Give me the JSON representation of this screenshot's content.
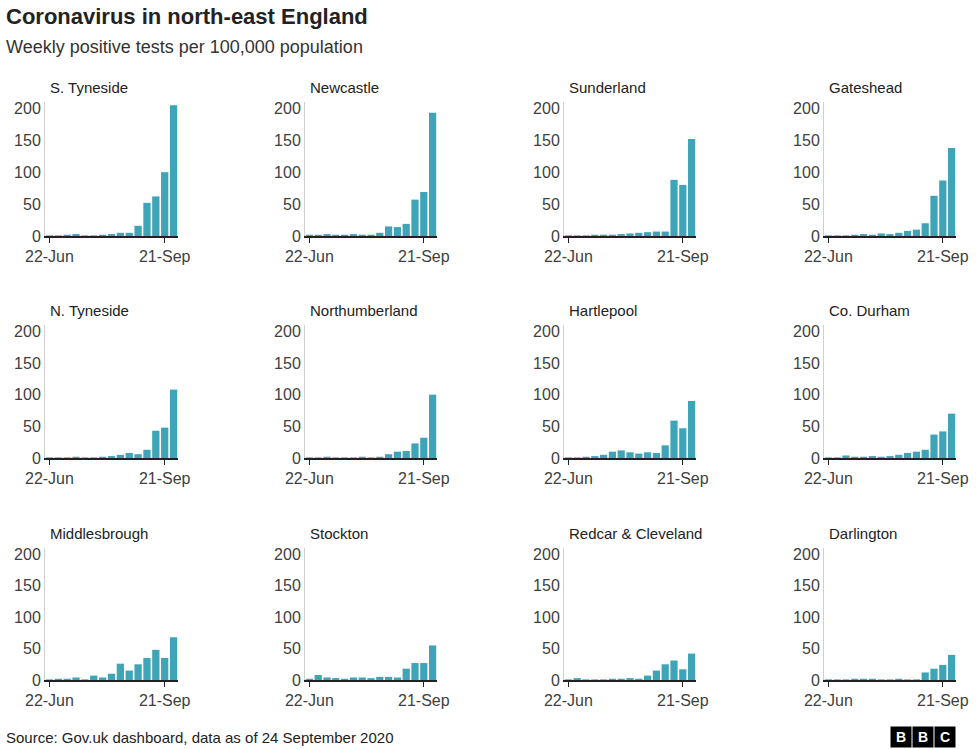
{
  "title": "Coronavirus in north-east England",
  "subtitle": "Weekly positive tests per 100,000 population",
  "source": "Source: Gov.uk dashboard, data as of 24 September 2020",
  "logo": "BBC",
  "chart_data": [
    {
      "type": "bar",
      "title": "S. Tyneside",
      "categories": [
        "22-Jun",
        null,
        null,
        null,
        null,
        null,
        null,
        null,
        null,
        null,
        null,
        null,
        null,
        "21-Sep",
        null
      ],
      "values": [
        1,
        1,
        2,
        3,
        1,
        1,
        2,
        3,
        5,
        5,
        16,
        52,
        62,
        100,
        205
      ],
      "color": "#3ea4b7",
      "ylim": [
        0,
        210
      ],
      "yticks": [
        0,
        50,
        100,
        150,
        200
      ],
      "grid": false
    },
    {
      "type": "bar",
      "title": "Newcastle",
      "categories": [
        "22-Jun",
        null,
        null,
        null,
        null,
        null,
        null,
        null,
        null,
        null,
        null,
        null,
        null,
        "21-Sep",
        null
      ],
      "values": [
        2,
        2,
        3,
        2,
        2,
        3,
        2,
        2,
        5,
        15,
        14,
        19,
        57,
        69,
        193
      ],
      "color": "#3ea4b7",
      "ylim": [
        0,
        210
      ],
      "yticks": [
        0,
        50,
        100,
        150,
        200
      ],
      "grid": false
    },
    {
      "type": "bar",
      "title": "Sunderland",
      "categories": [
        "22-Jun",
        null,
        null,
        null,
        null,
        null,
        null,
        null,
        null,
        null,
        null,
        null,
        null,
        "21-Sep",
        null
      ],
      "values": [
        1,
        1,
        1,
        2,
        2,
        2,
        3,
        4,
        5,
        6,
        7,
        7,
        88,
        80,
        152
      ],
      "color": "#3ea4b7",
      "ylim": [
        0,
        210
      ],
      "yticks": [
        0,
        50,
        100,
        150,
        200
      ],
      "grid": false
    },
    {
      "type": "bar",
      "title": "Gateshead",
      "categories": [
        "22-Jun",
        null,
        null,
        null,
        null,
        null,
        null,
        null,
        null,
        null,
        null,
        null,
        null,
        "21-Sep",
        null
      ],
      "values": [
        1,
        1,
        1,
        2,
        3,
        2,
        4,
        3,
        5,
        8,
        10,
        20,
        63,
        87,
        138
      ],
      "color": "#3ea4b7",
      "ylim": [
        0,
        210
      ],
      "yticks": [
        0,
        50,
        100,
        150,
        200
      ],
      "grid": false
    },
    {
      "type": "bar",
      "title": "N. Tyneside",
      "categories": [
        "22-Jun",
        null,
        null,
        null,
        null,
        null,
        null,
        null,
        null,
        null,
        null,
        null,
        null,
        "21-Sep",
        null
      ],
      "values": [
        1,
        1,
        1,
        2,
        1,
        1,
        2,
        3,
        5,
        8,
        6,
        13,
        43,
        48,
        108
      ],
      "color": "#3ea4b7",
      "ylim": [
        0,
        210
      ],
      "yticks": [
        0,
        50,
        100,
        150,
        200
      ],
      "grid": false
    },
    {
      "type": "bar",
      "title": "Northumberland",
      "categories": [
        "22-Jun",
        null,
        null,
        null,
        null,
        null,
        null,
        null,
        null,
        null,
        null,
        null,
        null,
        "21-Sep",
        null
      ],
      "values": [
        1,
        1,
        2,
        1,
        1,
        1,
        2,
        1,
        2,
        6,
        10,
        11,
        23,
        32,
        100
      ],
      "color": "#3ea4b7",
      "ylim": [
        0,
        210
      ],
      "yticks": [
        0,
        50,
        100,
        150,
        200
      ],
      "grid": false
    },
    {
      "type": "bar",
      "title": "Hartlepool",
      "categories": [
        "22-Jun",
        null,
        null,
        null,
        null,
        null,
        null,
        null,
        null,
        null,
        null,
        null,
        null,
        "21-Sep",
        null
      ],
      "values": [
        1,
        1,
        2,
        3,
        5,
        10,
        12,
        9,
        7,
        9,
        8,
        20,
        59,
        47,
        90
      ],
      "color": "#3ea4b7",
      "ylim": [
        0,
        210
      ],
      "yticks": [
        0,
        50,
        100,
        150,
        200
      ],
      "grid": false
    },
    {
      "type": "bar",
      "title": "Co. Durham",
      "categories": [
        "22-Jun",
        null,
        null,
        null,
        null,
        null,
        null,
        null,
        null,
        null,
        null,
        null,
        null,
        "21-Sep",
        null
      ],
      "values": [
        1,
        1,
        4,
        2,
        2,
        3,
        2,
        3,
        5,
        8,
        10,
        13,
        37,
        42,
        70
      ],
      "color": "#3ea4b7",
      "ylim": [
        0,
        210
      ],
      "yticks": [
        0,
        50,
        100,
        150,
        200
      ],
      "grid": false
    },
    {
      "type": "bar",
      "title": "Middlesbrough",
      "categories": [
        "22-Jun",
        null,
        null,
        null,
        null,
        null,
        null,
        null,
        null,
        null,
        null,
        null,
        null,
        "21-Sep",
        null
      ],
      "values": [
        1,
        2,
        2,
        4,
        1,
        7,
        4,
        10,
        26,
        15,
        25,
        35,
        48,
        35,
        68
      ],
      "color": "#3ea4b7",
      "ylim": [
        0,
        210
      ],
      "yticks": [
        0,
        50,
        100,
        150,
        200
      ],
      "grid": false
    },
    {
      "type": "bar",
      "title": "Stockton",
      "categories": [
        "22-Jun",
        null,
        null,
        null,
        null,
        null,
        null,
        null,
        null,
        null,
        null,
        null,
        null,
        "21-Sep",
        null
      ],
      "values": [
        2,
        8,
        4,
        3,
        2,
        4,
        4,
        3,
        5,
        5,
        4,
        18,
        27,
        27,
        55
      ],
      "color": "#3ea4b7",
      "ylim": [
        0,
        210
      ],
      "yticks": [
        0,
        50,
        100,
        150,
        200
      ],
      "grid": false
    },
    {
      "type": "bar",
      "title": "Redcar & Cleveland",
      "categories": [
        "22-Jun",
        null,
        null,
        null,
        null,
        null,
        null,
        null,
        null,
        null,
        null,
        null,
        null,
        "21-Sep",
        null
      ],
      "values": [
        1,
        3,
        1,
        1,
        1,
        2,
        2,
        3,
        2,
        7,
        15,
        25,
        31,
        17,
        42
      ],
      "color": "#3ea4b7",
      "ylim": [
        0,
        210
      ],
      "yticks": [
        0,
        50,
        100,
        150,
        200
      ],
      "grid": false
    },
    {
      "type": "bar",
      "title": "Darlington",
      "categories": [
        "22-Jun",
        null,
        null,
        null,
        null,
        null,
        null,
        null,
        null,
        null,
        null,
        null,
        null,
        "21-Sep",
        null
      ],
      "values": [
        1,
        1,
        1,
        2,
        2,
        2,
        1,
        1,
        2,
        1,
        1,
        12,
        18,
        24,
        40
      ],
      "color": "#3ea4b7",
      "ylim": [
        0,
        210
      ],
      "yticks": [
        0,
        50,
        100,
        150,
        200
      ],
      "grid": false
    }
  ]
}
